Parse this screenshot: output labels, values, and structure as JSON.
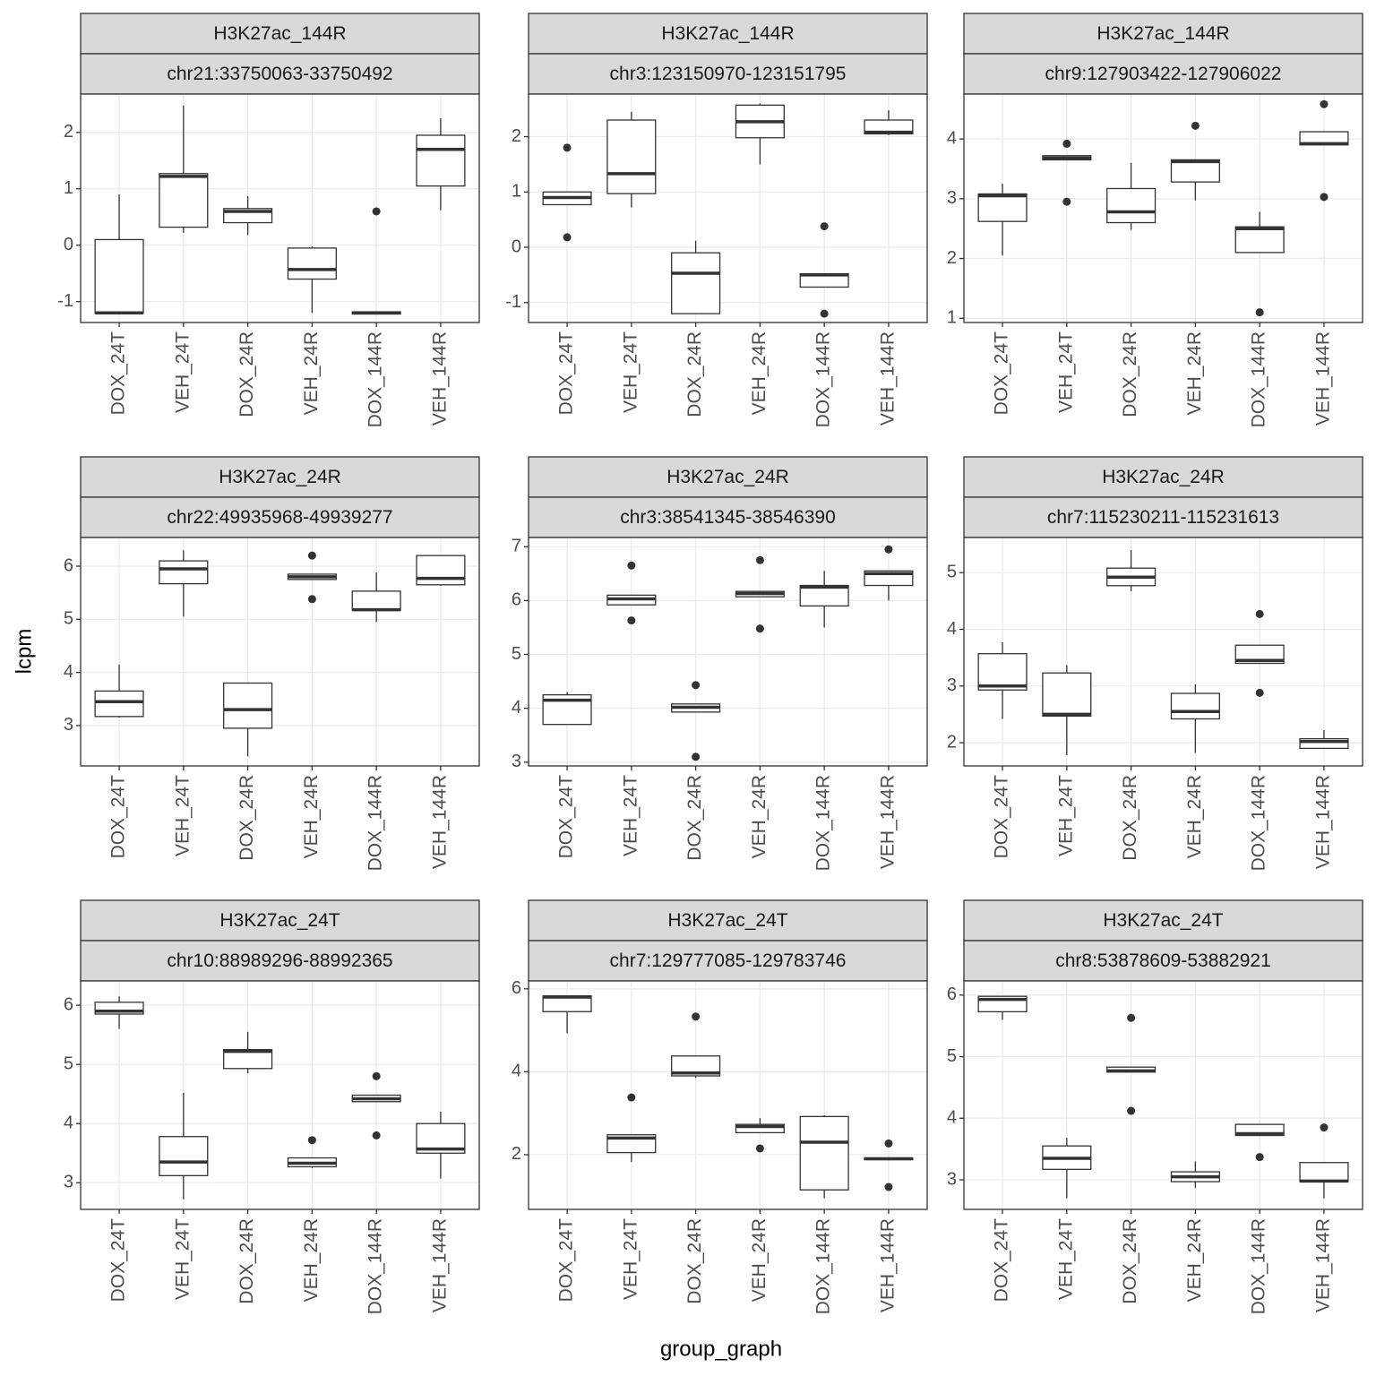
{
  "x_label": "group_graph",
  "y_label": "lcpm",
  "chart_data": [
    {
      "type": "box",
      "strips": [
        "H3K27ac_144R",
        "chr21:33750063-33750492"
      ],
      "categories": [
        "DOX_24T",
        "VEH_24T",
        "DOX_24R",
        "VEH_24R",
        "DOX_144R",
        "VEH_144R"
      ],
      "boxes": [
        {
          "low": -1.22,
          "q1": -1.2,
          "median": -1.2,
          "q3": 0.1,
          "high": 0.9
        },
        {
          "low": 0.22,
          "q1": 0.32,
          "median": 1.22,
          "q3": 1.27,
          "high": 2.48
        },
        {
          "low": 0.18,
          "q1": 0.4,
          "median": 0.6,
          "q3": 0.65,
          "high": 0.87
        },
        {
          "low": -1.2,
          "q1": -0.6,
          "median": -0.43,
          "q3": -0.05,
          "high": -0.02
        },
        {
          "low": -1.22,
          "q1": -1.22,
          "median": -1.2,
          "q3": -1.18,
          "high": -1.18,
          "outliers": [
            0.6
          ]
        },
        {
          "low": 0.62,
          "q1": 1.05,
          "median": 1.7,
          "q3": 1.95,
          "high": 2.25
        }
      ],
      "ylim": [
        -1.37,
        2.68
      ],
      "yticks": [
        -1,
        0,
        1,
        2
      ],
      "grid": true,
      "color": "#333333",
      "fill": "#ffffff"
    },
    {
      "type": "box",
      "strips": [
        "H3K27ac_144R",
        "chr3:123150970-123151795"
      ],
      "categories": [
        "DOX_24T",
        "VEH_24T",
        "DOX_24R",
        "VEH_24R",
        "DOX_144R",
        "VEH_144R"
      ],
      "boxes": [
        {
          "low": 0.77,
          "q1": 0.77,
          "median": 0.9,
          "q3": 1.0,
          "high": 1.0,
          "outliers": [
            1.8,
            0.18
          ]
        },
        {
          "low": 0.72,
          "q1": 0.97,
          "median": 1.33,
          "q3": 2.3,
          "high": 2.45
        },
        {
          "low": -1.2,
          "q1": -1.2,
          "median": -0.47,
          "q3": -0.1,
          "high": 0.12
        },
        {
          "low": 1.5,
          "q1": 1.98,
          "median": 2.27,
          "q3": 2.57,
          "high": 2.6
        },
        {
          "low": -0.72,
          "q1": -0.72,
          "median": -0.5,
          "q3": -0.48,
          "high": -0.48,
          "outliers": [
            0.38,
            -1.2
          ]
        },
        {
          "low": 2.03,
          "q1": 2.05,
          "median": 2.08,
          "q3": 2.3,
          "high": 2.48
        }
      ],
      "ylim": [
        -1.36,
        2.77
      ],
      "yticks": [
        -1,
        0,
        1,
        2
      ],
      "grid": true,
      "color": "#333333",
      "fill": "#ffffff"
    },
    {
      "type": "box",
      "strips": [
        "H3K27ac_144R",
        "chr9:127903422-127906022"
      ],
      "categories": [
        "DOX_24T",
        "VEH_24T",
        "DOX_24R",
        "VEH_24R",
        "DOX_144R",
        "VEH_144R"
      ],
      "boxes": [
        {
          "low": 2.05,
          "q1": 2.62,
          "median": 3.05,
          "q3": 3.08,
          "high": 3.25
        },
        {
          "low": 3.65,
          "q1": 3.65,
          "median": 3.68,
          "q3": 3.72,
          "high": 3.72,
          "outliers": [
            3.92,
            2.95
          ]
        },
        {
          "low": 2.48,
          "q1": 2.6,
          "median": 2.78,
          "q3": 3.17,
          "high": 3.6
        },
        {
          "low": 2.97,
          "q1": 3.28,
          "median": 3.62,
          "q3": 3.65,
          "high": 3.65,
          "outliers": [
            4.22
          ]
        },
        {
          "low": 2.1,
          "q1": 2.1,
          "median": 2.5,
          "q3": 2.53,
          "high": 2.78,
          "outliers": [
            1.1
          ]
        },
        {
          "low": 3.9,
          "q1": 3.9,
          "median": 3.92,
          "q3": 4.12,
          "high": 4.12,
          "outliers": [
            4.58,
            3.03
          ]
        }
      ],
      "ylim": [
        0.93,
        4.75
      ],
      "yticks": [
        1,
        2,
        3,
        4
      ],
      "grid": true,
      "color": "#333333",
      "fill": "#ffffff"
    },
    {
      "type": "box",
      "strips": [
        "H3K27ac_24R",
        "chr22:49935968-49939277"
      ],
      "categories": [
        "DOX_24T",
        "VEH_24T",
        "DOX_24R",
        "VEH_24R",
        "DOX_144R",
        "VEH_144R"
      ],
      "boxes": [
        {
          "low": 3.15,
          "q1": 3.17,
          "median": 3.45,
          "q3": 3.65,
          "high": 4.15
        },
        {
          "low": 5.05,
          "q1": 5.67,
          "median": 5.95,
          "q3": 6.1,
          "high": 6.3
        },
        {
          "low": 2.42,
          "q1": 2.95,
          "median": 3.3,
          "q3": 3.8,
          "high": 3.8
        },
        {
          "low": 5.75,
          "q1": 5.75,
          "median": 5.8,
          "q3": 5.85,
          "high": 5.85,
          "outliers": [
            6.2,
            5.38
          ]
        },
        {
          "low": 4.95,
          "q1": 5.17,
          "median": 5.18,
          "q3": 5.53,
          "high": 5.88
        },
        {
          "low": 5.63,
          "q1": 5.65,
          "median": 5.77,
          "q3": 6.2,
          "high": 6.2
        }
      ],
      "ylim": [
        2.24,
        6.54
      ],
      "yticks": [
        3,
        4,
        5,
        6
      ],
      "grid": true,
      "color": "#333333",
      "fill": "#ffffff"
    },
    {
      "type": "box",
      "strips": [
        "H3K27ac_24R",
        "chr3:38541345-38546390"
      ],
      "categories": [
        "DOX_24T",
        "VEH_24T",
        "DOX_24R",
        "VEH_24R",
        "DOX_144R",
        "VEH_144R"
      ],
      "boxes": [
        {
          "low": 3.7,
          "q1": 3.7,
          "median": 4.15,
          "q3": 4.25,
          "high": 4.3
        },
        {
          "low": 5.92,
          "q1": 5.92,
          "median": 6.03,
          "q3": 6.1,
          "high": 6.1,
          "outliers": [
            6.65,
            5.63
          ]
        },
        {
          "low": 3.93,
          "q1": 3.93,
          "median": 4.02,
          "q3": 4.08,
          "high": 4.08,
          "outliers": [
            4.43,
            3.1
          ]
        },
        {
          "low": 6.07,
          "q1": 6.07,
          "median": 6.13,
          "q3": 6.17,
          "high": 6.17,
          "outliers": [
            6.75,
            5.48
          ]
        },
        {
          "low": 5.5,
          "q1": 5.9,
          "median": 6.25,
          "q3": 6.28,
          "high": 6.55
        },
        {
          "low": 6.0,
          "q1": 6.28,
          "median": 6.5,
          "q3": 6.55,
          "high": 6.55,
          "outliers": [
            6.95
          ]
        }
      ],
      "ylim": [
        2.93,
        7.17
      ],
      "yticks": [
        3,
        4,
        5,
        6,
        7
      ],
      "grid": true,
      "color": "#333333",
      "fill": "#ffffff"
    },
    {
      "type": "box",
      "strips": [
        "H3K27ac_24R",
        "chr7:115230211-115231613"
      ],
      "categories": [
        "DOX_24T",
        "VEH_24T",
        "DOX_24R",
        "VEH_24R",
        "DOX_144R",
        "VEH_144R"
      ],
      "boxes": [
        {
          "low": 2.42,
          "q1": 2.93,
          "median": 3.0,
          "q3": 3.57,
          "high": 3.77
        },
        {
          "low": 1.78,
          "q1": 2.47,
          "median": 2.5,
          "q3": 3.23,
          "high": 3.37
        },
        {
          "low": 4.67,
          "q1": 4.77,
          "median": 4.92,
          "q3": 5.08,
          "high": 5.4
        },
        {
          "low": 1.82,
          "q1": 2.42,
          "median": 2.55,
          "q3": 2.87,
          "high": 3.03
        },
        {
          "low": 3.4,
          "q1": 3.4,
          "median": 3.45,
          "q3": 3.72,
          "high": 3.72,
          "outliers": [
            4.27,
            2.88
          ]
        },
        {
          "low": 1.9,
          "q1": 1.9,
          "median": 2.02,
          "q3": 2.07,
          "high": 2.22
        }
      ],
      "ylim": [
        1.59,
        5.62
      ],
      "yticks": [
        2,
        3,
        4,
        5
      ],
      "grid": true,
      "color": "#333333",
      "fill": "#ffffff"
    },
    {
      "type": "box",
      "strips": [
        "H3K27ac_24T",
        "chr10:88989296-88992365"
      ],
      "categories": [
        "DOX_24T",
        "VEH_24T",
        "DOX_24R",
        "VEH_24R",
        "DOX_144R",
        "VEH_144R"
      ],
      "boxes": [
        {
          "low": 5.6,
          "q1": 5.85,
          "median": 5.9,
          "q3": 6.05,
          "high": 6.15
        },
        {
          "low": 2.72,
          "q1": 3.12,
          "median": 3.35,
          "q3": 3.78,
          "high": 4.52
        },
        {
          "low": 4.85,
          "q1": 4.93,
          "median": 5.22,
          "q3": 5.25,
          "high": 5.55
        },
        {
          "low": 3.25,
          "q1": 3.27,
          "median": 3.33,
          "q3": 3.42,
          "high": 3.42,
          "outliers": [
            3.72
          ]
        },
        {
          "low": 4.37,
          "q1": 4.37,
          "median": 4.42,
          "q3": 4.48,
          "high": 4.48,
          "outliers": [
            4.8,
            3.8
          ]
        },
        {
          "low": 3.07,
          "q1": 3.5,
          "median": 3.57,
          "q3": 4.0,
          "high": 4.2
        }
      ],
      "ylim": [
        2.55,
        6.41
      ],
      "yticks": [
        3,
        4,
        5,
        6
      ],
      "grid": true,
      "color": "#333333",
      "fill": "#ffffff"
    },
    {
      "type": "box",
      "strips": [
        "H3K27ac_24T",
        "chr7:129777085-129783746"
      ],
      "categories": [
        "DOX_24T",
        "VEH_24T",
        "DOX_24R",
        "VEH_24R",
        "DOX_144R",
        "VEH_144R"
      ],
      "boxes": [
        {
          "low": 4.93,
          "q1": 5.45,
          "median": 5.8,
          "q3": 5.83,
          "high": 5.83
        },
        {
          "low": 1.82,
          "q1": 2.05,
          "median": 2.4,
          "q3": 2.48,
          "high": 2.48,
          "outliers": [
            3.38
          ]
        },
        {
          "low": 3.85,
          "q1": 3.9,
          "median": 3.97,
          "q3": 4.38,
          "high": 4.38,
          "outliers": [
            5.33
          ]
        },
        {
          "low": 2.53,
          "q1": 2.53,
          "median": 2.68,
          "q3": 2.73,
          "high": 2.88,
          "outliers": [
            2.15
          ]
        },
        {
          "low": 0.95,
          "q1": 1.15,
          "median": 2.3,
          "q3": 2.92,
          "high": 2.95
        },
        {
          "low": 1.88,
          "q1": 1.88,
          "median": 1.9,
          "q3": 1.92,
          "high": 1.92,
          "outliers": [
            2.27,
            1.22
          ]
        }
      ],
      "ylim": [
        0.68,
        6.19
      ],
      "yticks": [
        2,
        4,
        6
      ],
      "grid": true,
      "color": "#333333",
      "fill": "#ffffff"
    },
    {
      "type": "box",
      "strips": [
        "H3K27ac_24T",
        "chr8:53878609-53882921"
      ],
      "categories": [
        "DOX_24T",
        "VEH_24T",
        "DOX_24R",
        "VEH_24R",
        "DOX_144R",
        "VEH_144R"
      ],
      "boxes": [
        {
          "low": 5.6,
          "q1": 5.73,
          "median": 5.93,
          "q3": 5.98,
          "high": 5.98
        },
        {
          "low": 2.7,
          "q1": 3.17,
          "median": 3.35,
          "q3": 3.55,
          "high": 3.68
        },
        {
          "low": 4.75,
          "q1": 4.75,
          "median": 4.77,
          "q3": 4.83,
          "high": 4.83,
          "outliers": [
            5.63,
            4.12
          ]
        },
        {
          "low": 2.87,
          "q1": 2.97,
          "median": 3.05,
          "q3": 3.13,
          "high": 3.3
        },
        {
          "low": 3.72,
          "q1": 3.72,
          "median": 3.75,
          "q3": 3.9,
          "high": 3.9,
          "outliers": [
            3.37
          ]
        },
        {
          "low": 2.7,
          "q1": 2.97,
          "median": 2.98,
          "q3": 3.28,
          "high": 3.28,
          "outliers": [
            3.85
          ]
        }
      ],
      "ylim": [
        2.52,
        6.23
      ],
      "yticks": [
        3,
        4,
        5,
        6
      ],
      "grid": true,
      "color": "#333333",
      "fill": "#ffffff"
    }
  ]
}
